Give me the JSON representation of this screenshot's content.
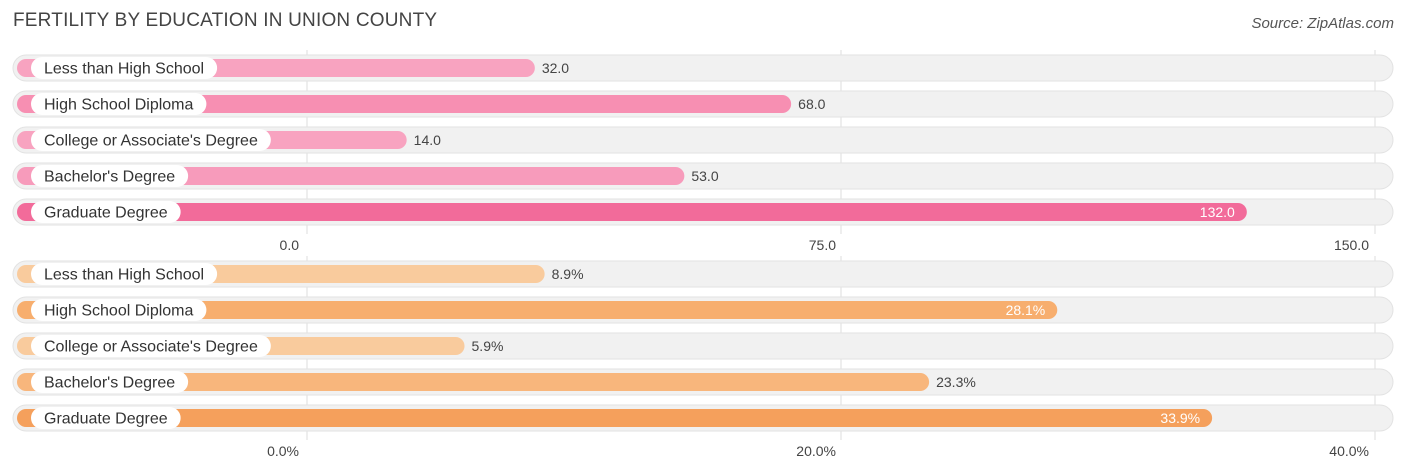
{
  "title": "FERTILITY BY EDUCATION IN UNION COUNTY",
  "source": "Source: ZipAtlas.com",
  "chart_data": [
    {
      "type": "bar",
      "orientation": "horizontal",
      "categories": [
        "Less than High School",
        "High School Diploma",
        "College or Associate's Degree",
        "Bachelor's Degree",
        "Graduate Degree"
      ],
      "values": [
        32.0,
        68.0,
        14.0,
        53.0,
        132.0
      ],
      "value_labels": [
        "32.0",
        "68.0",
        "14.0",
        "53.0",
        "132.0"
      ],
      "xlim": [
        0,
        150
      ],
      "ticks": [
        0,
        75,
        150
      ],
      "tick_labels": [
        "0.0",
        "75.0",
        "150.0"
      ],
      "colors": [
        "#f8a3c0",
        "#f78fb2",
        "#f8a3c0",
        "#f79bbb",
        "#f26b9a"
      ],
      "grid": true
    },
    {
      "type": "bar",
      "orientation": "horizontal",
      "categories": [
        "Less than High School",
        "High School Diploma",
        "College or Associate's Degree",
        "Bachelor's Degree",
        "Graduate Degree"
      ],
      "values": [
        8.9,
        28.1,
        5.9,
        23.3,
        33.9
      ],
      "value_labels": [
        "8.9%",
        "28.1%",
        "5.9%",
        "23.3%",
        "33.9%"
      ],
      "xlim": [
        0,
        40
      ],
      "ticks": [
        0,
        20,
        40
      ],
      "tick_labels": [
        "0.0%",
        "20.0%",
        "40.0%"
      ],
      "colors": [
        "#f9cb9d",
        "#f7ae6e",
        "#f9cb9d",
        "#f8b67c",
        "#f5a05c"
      ],
      "grid": true
    }
  ]
}
